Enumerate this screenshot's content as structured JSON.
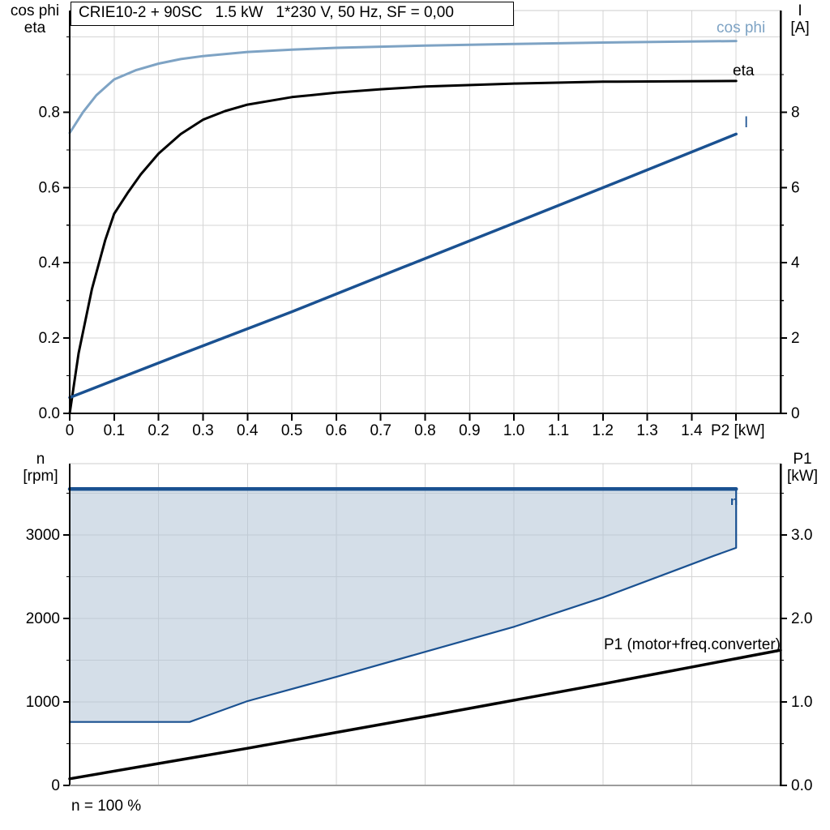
{
  "title_box": {
    "text": "CRIE10-2 + 90SC   1.5 kW   1*230 V, 50 Hz, SF = 0,00"
  },
  "colors": {
    "cos_phi": "#7ea3c4",
    "dark_blue": "#1a5191",
    "area_fill": "#b0c2d6",
    "eta": "#000000",
    "p1": "#000000",
    "grid": "#d5d5d5",
    "axis": "#000000",
    "bottom_axis": "#9c9c9c",
    "top_spine": "#cccccc"
  },
  "top_chart": {
    "ylabel_left_line1": "cos phi",
    "ylabel_left_line2": "eta",
    "ylabel_right_line1": "I",
    "ylabel_right_line2": "[A]",
    "curve_labels": {
      "cos_phi": "cos phi",
      "eta": "eta",
      "current": "I"
    }
  },
  "bottom_chart": {
    "ylabel_left_line1": "n",
    "ylabel_left_line2": "[rpm]",
    "ylabel_right_line1": "P1",
    "ylabel_right_line2": "[kW]",
    "footnote": "n = 100 %",
    "curve_labels": {
      "n": "n",
      "p1": "P1 (motor+freq.converter)"
    }
  },
  "chart_data": [
    {
      "type": "line",
      "title": "CRIE10-2 + 90SC   1.5 kW   1*230 V, 50 Hz, SF = 0,00",
      "xlabel": "P2 [kW]",
      "ylabel_left": "cos phi / eta",
      "ylabel_right": "I [A]",
      "xlim": [
        0,
        1.6
      ],
      "ylim_left": [
        0,
        1.07
      ],
      "ylim_right": [
        0,
        10.7
      ],
      "grid": true,
      "x_ticks": [
        0,
        0.1,
        0.2,
        0.3,
        0.4,
        0.5,
        0.6,
        0.7,
        0.8,
        0.9,
        1.0,
        1.1,
        1.2,
        1.3,
        1.4
      ],
      "x_tick_labels": [
        "0",
        "0.1",
        "0.2",
        "0.3",
        "0.4",
        "0.5",
        "0.6",
        "0.7",
        "0.8",
        "0.9",
        "1.0",
        "1.1",
        "1.2",
        "1.3",
        "1.4"
      ],
      "x_extra_ticks": [
        1.5
      ],
      "y_ticks_left": [
        0,
        0.2,
        0.4,
        0.6,
        0.8
      ],
      "y_tick_labels_left": [
        "0.0",
        "0.2",
        "0.4",
        "0.6",
        "0.8"
      ],
      "y_minor_left": [
        0.1,
        0.3,
        0.5,
        0.7,
        0.9,
        1.0
      ],
      "y_ticks_right": [
        0,
        2,
        4,
        6,
        8
      ],
      "y_tick_labels_right": [
        "0",
        "2",
        "4",
        "6",
        "8"
      ],
      "y_minor_right": [
        1,
        3,
        5,
        7,
        9
      ],
      "grid_x": [
        0.1,
        0.2,
        0.3,
        0.4,
        0.5,
        0.6,
        0.7,
        0.8,
        0.9,
        1.0,
        1.1,
        1.2,
        1.3,
        1.4,
        1.5
      ],
      "grid_y": [
        0.1,
        0.2,
        0.3,
        0.4,
        0.5,
        0.6,
        0.7,
        0.8,
        0.9,
        1.0
      ],
      "series": [
        {
          "name": "cos phi",
          "axis": "left",
          "color": "#7ea3c4",
          "width": 3,
          "x": [
            0,
            0.03,
            0.06,
            0.1,
            0.15,
            0.2,
            0.25,
            0.3,
            0.4,
            0.5,
            0.6,
            0.8,
            1.0,
            1.2,
            1.5
          ],
          "y": [
            0.745,
            0.8,
            0.845,
            0.887,
            0.912,
            0.929,
            0.941,
            0.949,
            0.96,
            0.966,
            0.971,
            0.977,
            0.981,
            0.985,
            0.989
          ]
        },
        {
          "name": "eta",
          "axis": "left",
          "color": "#000000",
          "width": 3,
          "x": [
            0,
            0.02,
            0.05,
            0.08,
            0.1,
            0.13,
            0.16,
            0.2,
            0.25,
            0.3,
            0.35,
            0.4,
            0.5,
            0.6,
            0.7,
            0.8,
            1.0,
            1.2,
            1.5
          ],
          "y": [
            0,
            0.16,
            0.33,
            0.46,
            0.53,
            0.585,
            0.635,
            0.69,
            0.742,
            0.78,
            0.803,
            0.82,
            0.84,
            0.852,
            0.861,
            0.868,
            0.876,
            0.881,
            0.883
          ]
        },
        {
          "name": "I",
          "axis": "right",
          "color": "#1a5191",
          "width": 3.5,
          "x": [
            0,
            0.25,
            0.5,
            0.75,
            1.0,
            1.25,
            1.5
          ],
          "y": [
            0.42,
            1.57,
            2.7,
            3.88,
            5.05,
            6.23,
            7.42
          ]
        }
      ]
    },
    {
      "type": "line+area",
      "xlabel": "",
      "x_note": "n = 100 %",
      "ylabel_left": "n [rpm]",
      "ylabel_right": "P1 [kW]",
      "xlim": [
        0,
        1.6
      ],
      "ylim_left": [
        0,
        3854
      ],
      "ylim_right": [
        0,
        3.854
      ],
      "grid": true,
      "y_ticks_left": [
        0,
        1000,
        2000,
        3000
      ],
      "y_tick_labels_left": [
        "0",
        "1000",
        "2000",
        "3000"
      ],
      "y_minor_left": [
        500,
        1500,
        2500,
        3500
      ],
      "y_ticks_right": [
        0,
        1,
        2,
        3
      ],
      "y_tick_labels_right": [
        "0.0",
        "1.0",
        "2.0",
        "3.0"
      ],
      "y_minor_right": [
        0.5,
        1.5,
        2.5,
        3.5
      ],
      "grid_x": [
        0.2,
        0.4,
        0.6,
        0.8,
        1.0,
        1.2,
        1.4
      ],
      "grid_y": [
        500,
        1000,
        1500,
        2000,
        2500,
        3000,
        3500
      ],
      "series": [
        {
          "name": "n",
          "type": "area",
          "axis": "left",
          "color": "#1a5191",
          "fill": "#b0c2d6",
          "fill_opacity": 0.55,
          "top_width": 4.5,
          "border_width": 2.2,
          "upper": {
            "x": [
              0,
              1.5
            ],
            "y": [
              3550,
              3550
            ]
          },
          "lower": {
            "x": [
              0,
              0.27,
              0.4,
              0.6,
              0.8,
              1.0,
              1.2,
              1.35,
              1.45,
              1.5
            ],
            "y": [
              760,
              760,
              1010,
              1300,
              1600,
              1900,
              2250,
              2550,
              2750,
              2845
            ]
          }
        },
        {
          "name": "P1 (motor+freq.converter)",
          "type": "line",
          "axis": "right",
          "color": "#000000",
          "width": 3.5,
          "x": [
            0,
            0.4,
            0.8,
            1.2,
            1.6
          ],
          "y": [
            0.08,
            0.445,
            0.825,
            1.215,
            1.62
          ]
        }
      ]
    }
  ]
}
